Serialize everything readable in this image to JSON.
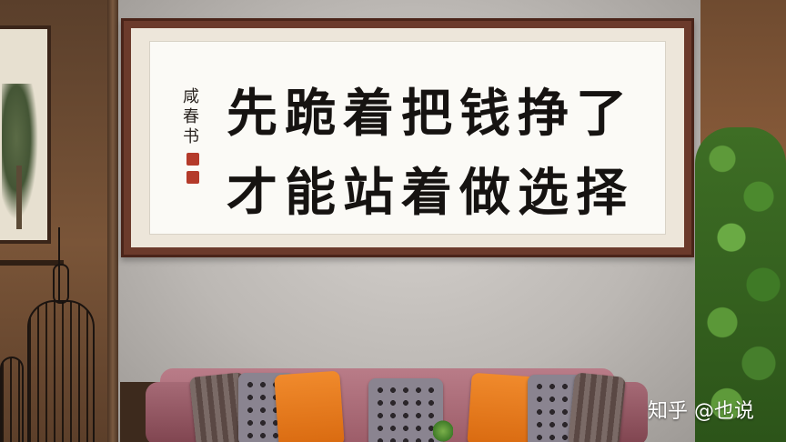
{
  "calligraphy": {
    "line1": "先跪着把钱挣了",
    "line2": "才能站着做选择",
    "signature": "咸春书"
  },
  "watermark": "知乎 @也说"
}
